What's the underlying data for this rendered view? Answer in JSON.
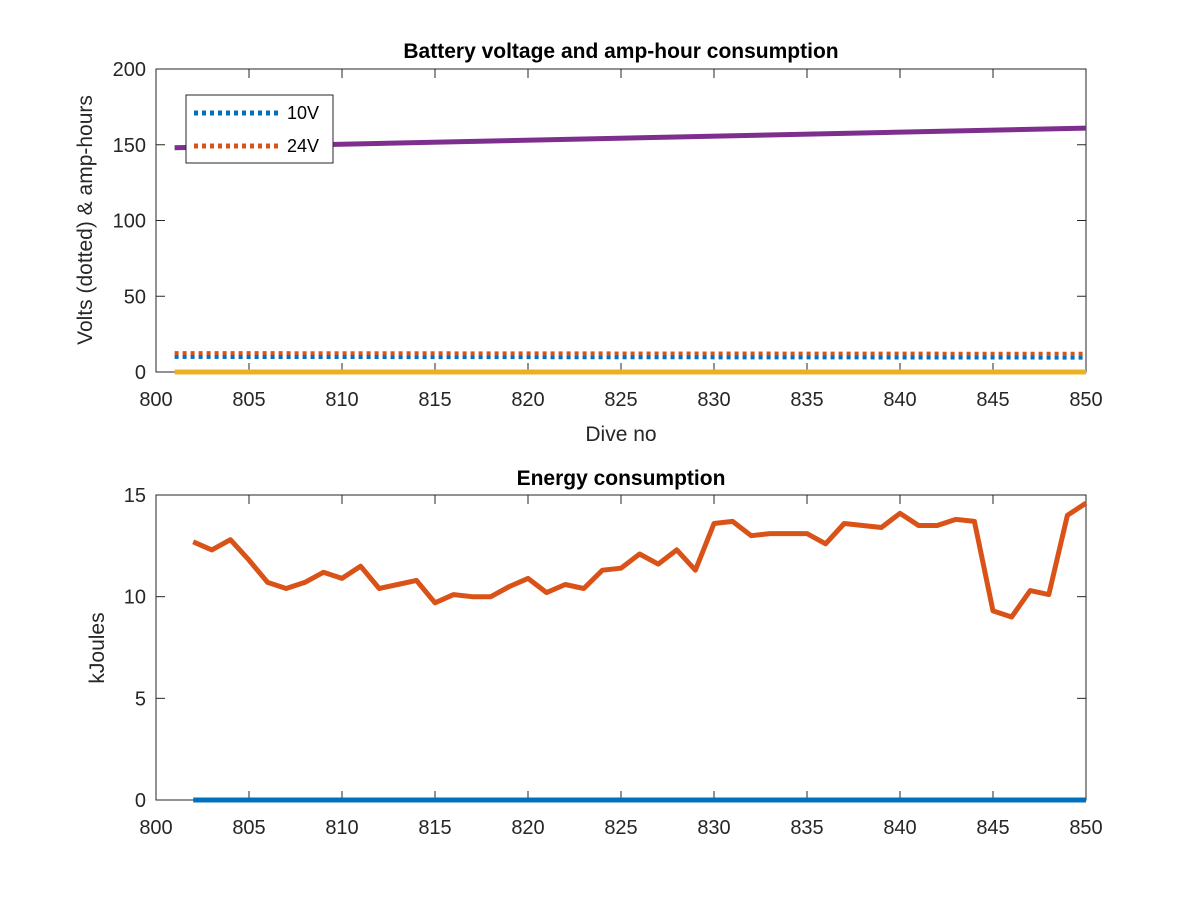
{
  "chart_data": [
    {
      "type": "line",
      "title": "Battery voltage and amp-hour consumption",
      "xlabel": "Dive no",
      "ylabel": "Volts (dotted) & amp-hours",
      "xlim": [
        800,
        850
      ],
      "ylim": [
        0,
        200
      ],
      "xticks": [
        "800",
        "805",
        "810",
        "815",
        "820",
        "825",
        "830",
        "835",
        "840",
        "845",
        "850"
      ],
      "yticks": [
        "0",
        "50",
        "100",
        "150",
        "200"
      ],
      "legend_position": "top-left",
      "series": [
        {
          "name": "10V",
          "style": "dotted",
          "color": "#0072BD",
          "x": [
            801,
            850
          ],
          "y": [
            10,
            9.5
          ]
        },
        {
          "name": "24V",
          "style": "dotted",
          "color": "#D95319",
          "x": [
            801,
            850
          ],
          "y": [
            12.5,
            12
          ]
        },
        {
          "style": "solid",
          "color": "#7E2F8E",
          "x": [
            801,
            850
          ],
          "y": [
            148,
            161
          ]
        },
        {
          "style": "solid",
          "color": "#EDB120",
          "x": [
            801,
            850
          ],
          "y": [
            0,
            0
          ]
        }
      ]
    },
    {
      "type": "line",
      "title": "Energy consumption",
      "xlabel": "",
      "ylabel": "kJoules",
      "xlim": [
        800,
        850
      ],
      "ylim": [
        0,
        15
      ],
      "xticks": [
        "800",
        "805",
        "810",
        "815",
        "820",
        "825",
        "830",
        "835",
        "840",
        "845",
        "850"
      ],
      "yticks": [
        "0",
        "5",
        "10",
        "15"
      ],
      "series": [
        {
          "style": "solid",
          "color": "#D95319",
          "x": [
            802,
            803,
            804,
            805,
            806,
            807,
            808,
            809,
            810,
            811,
            812,
            813,
            814,
            815,
            816,
            817,
            818,
            819,
            820,
            821,
            822,
            823,
            824,
            825,
            826,
            827,
            828,
            829,
            830,
            831,
            832,
            833,
            834,
            835,
            836,
            837,
            838,
            839,
            840,
            841,
            842,
            843,
            844,
            845,
            846,
            847,
            848,
            849,
            850
          ],
          "y": [
            12.7,
            12.3,
            12.8,
            11.8,
            10.7,
            10.4,
            10.7,
            11.2,
            10.9,
            11.5,
            10.4,
            10.6,
            10.8,
            9.7,
            10.1,
            10.0,
            10.0,
            10.5,
            10.9,
            10.2,
            10.6,
            10.4,
            11.3,
            11.4,
            12.1,
            11.6,
            12.3,
            11.3,
            13.6,
            13.7,
            13.0,
            13.1,
            13.1,
            13.1,
            12.6,
            13.6,
            13.5,
            13.4,
            14.1,
            13.5,
            13.5,
            13.8,
            13.7,
            9.3,
            9.0,
            10.3,
            10.1,
            14.0,
            14.6
          ]
        },
        {
          "style": "solid",
          "color": "#0072BD",
          "x": [
            802,
            850
          ],
          "y": [
            0,
            0
          ]
        }
      ]
    }
  ]
}
